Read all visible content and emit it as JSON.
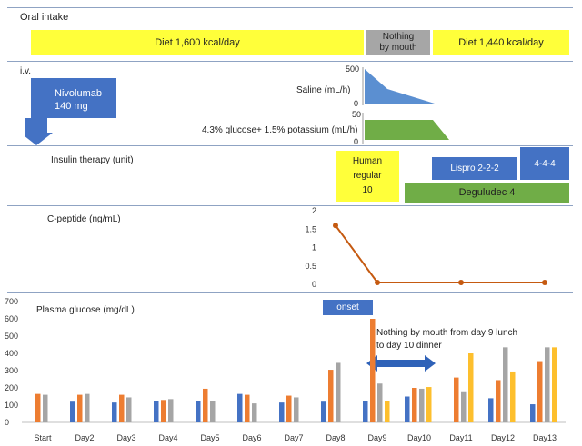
{
  "oral_intake": {
    "title": "Oral intake",
    "diet1": "Diet 1,600 kcal/day",
    "nothing_line1": "Nothing",
    "nothing_line2": "by mouth",
    "diet2": "Diet 1,440 kcal/day"
  },
  "iv": {
    "title": "i.v.",
    "nivolumab_line1": "Nivolumab",
    "nivolumab_line2": "140 mg",
    "saline_label": "Saline (mL/h)",
    "saline_ticks": [
      "500",
      "0"
    ],
    "saline_values": [
      500,
      0
    ],
    "glucose_label": "4.3% glucose+ 1.5% potassium (mL/h)",
    "glucose_ticks": [
      "50",
      "0"
    ],
    "glucose_values": [
      50,
      0
    ]
  },
  "insulin": {
    "title": "Insulin therapy (unit)",
    "human_line1": "Human",
    "human_line2": "regular",
    "human_line3": "10",
    "lispro": "Lispro 2-2-2",
    "lispro_high": "4-4-4",
    "degludec": "Deguludec  4"
  },
  "cpeptide": {
    "title": "C-peptide (ng/mL)",
    "yticks": [
      "2",
      "1.5",
      "1",
      "0.5",
      "0"
    ],
    "points": [
      {
        "day": "Day8",
        "value": 1.6
      },
      {
        "day": "Day9",
        "value": 0.05
      },
      {
        "day": "Day11",
        "value": 0.05
      },
      {
        "day": "Day13",
        "value": 0.05
      }
    ],
    "color": "#c55a11"
  },
  "annotations": {
    "onset": "onset",
    "note_line1": "Nothing by mouth from day 9 lunch",
    "note_line2": "to day 10 dinner"
  },
  "chart_data": {
    "type": "bar",
    "title": "Plasma glucose (mg/dL)",
    "categories": [
      "Start",
      "Day2",
      "Day3",
      "Day4",
      "Day5",
      "Day6",
      "Day7",
      "Day8",
      "Day9",
      "Day10",
      "Day11",
      "Day12",
      "Day13"
    ],
    "ylim": [
      0,
      700
    ],
    "yticks": [
      "0",
      "100",
      "200",
      "300",
      "400",
      "500",
      "600",
      "700"
    ],
    "series": [
      {
        "color": "#4472c4",
        "values": [
          null,
          120,
          115,
          125,
          125,
          165,
          115,
          120,
          125,
          150,
          null,
          140,
          105
        ]
      },
      {
        "color": "#ed7d31",
        "values": [
          165,
          160,
          160,
          130,
          195,
          160,
          155,
          305,
          600,
          200,
          260,
          245,
          355
        ]
      },
      {
        "color": "#a5a5a5",
        "values": [
          160,
          165,
          145,
          135,
          125,
          110,
          145,
          345,
          225,
          195,
          175,
          435,
          435
        ]
      },
      {
        "color": "#fdbf2d",
        "values": [
          null,
          null,
          null,
          null,
          null,
          null,
          null,
          null,
          125,
          205,
          400,
          295,
          435
        ]
      }
    ],
    "grid": false
  }
}
